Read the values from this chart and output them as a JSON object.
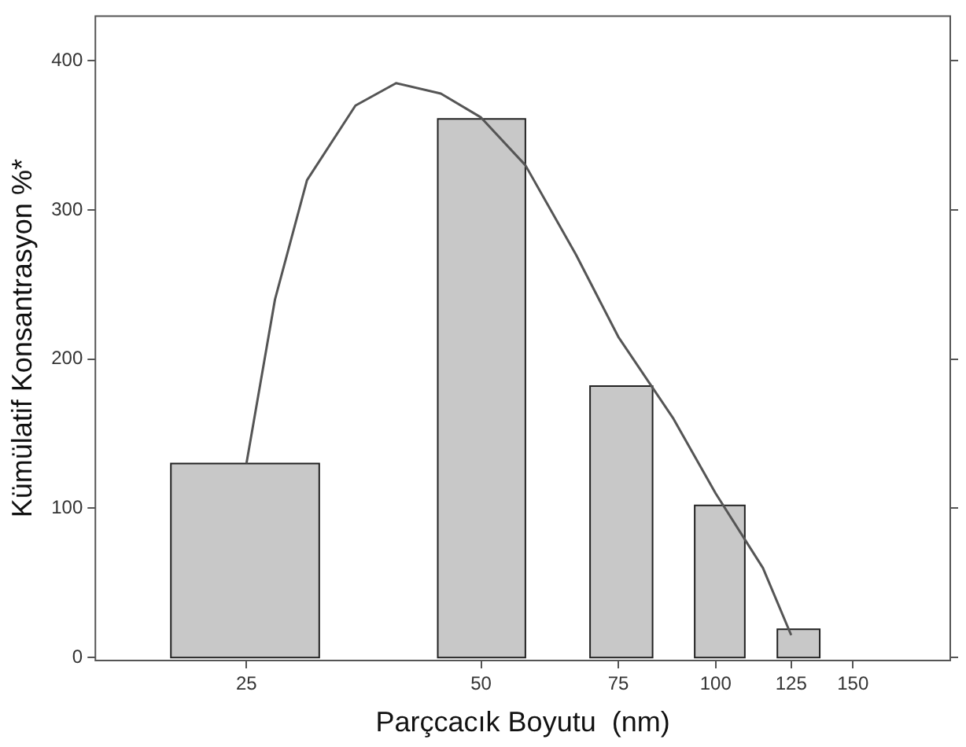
{
  "chart_data": {
    "type": "histogram",
    "xlabel": "Parçcacık Boyutu  (nm)",
    "ylabel": "Kümülatif Konsantrasyon %*",
    "bins": [
      20,
      31,
      44,
      57,
      69,
      83,
      94,
      109,
      120,
      136
    ],
    "values": [
      130,
      null,
      361,
      null,
      182,
      null,
      102,
      null,
      19
    ],
    "color": "#c8c8c8",
    "series": [
      {
        "type": "line",
        "color": "#555555",
        "x": [
          25,
          27.2,
          29.9,
          34.5,
          38.9,
          44.4,
          50,
          57,
          66.2,
          75,
          88.3,
          100,
          115,
          125
        ],
        "values": [
          130,
          240,
          320,
          370,
          385,
          378,
          362,
          330,
          270,
          215,
          160,
          110,
          60,
          15
        ]
      }
    ],
    "log": "x",
    "xlim": [
      16,
      200
    ],
    "xticks": [
      25,
      50,
      75,
      100,
      125,
      150
    ],
    "ylim": [
      -2,
      430
    ],
    "yticks": [
      0,
      100,
      200,
      300,
      400
    ],
    "grid": false,
    "legend": false,
    "marker": "none"
  }
}
